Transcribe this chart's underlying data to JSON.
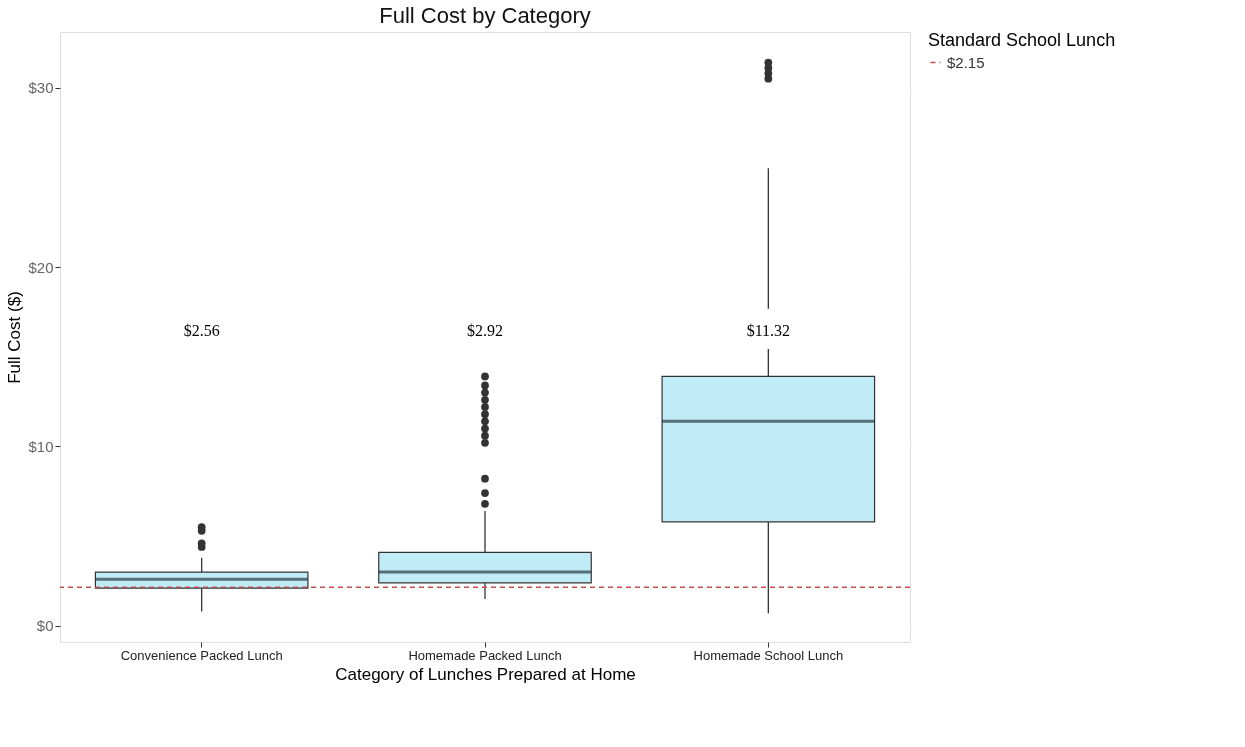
{
  "chart_data": {
    "type": "box",
    "title": "Full Cost by Category",
    "xlabel": "Category of Lunches Prepared at Home",
    "ylabel": "Full Cost ($)",
    "legend_title": "Standard School Lunch",
    "categories": [
      "Convenience Packed Lunch",
      "Homemade Packed Lunch",
      "Homemade School Lunch"
    ],
    "series": [
      {
        "color": "#c0ecf8",
        "boxes": [
          {
            "low": 0.8,
            "q1": 2.1,
            "median": 2.6,
            "q3": 3.0,
            "high": 3.8,
            "outliers": [
              4.4,
              4.6,
              5.3,
              5.5
            ]
          },
          {
            "low": 1.5,
            "q1": 2.4,
            "median": 3.0,
            "q3": 4.1,
            "high": 6.4,
            "outliers": [
              6.8,
              7.4,
              8.2,
              10.2,
              10.6,
              11.0,
              11.4,
              11.8,
              12.2,
              12.6,
              13.0,
              13.4,
              13.9
            ]
          },
          {
            "low": 0.7,
            "q1": 5.8,
            "median": 11.4,
            "q3": 13.9,
            "high": 25.5,
            "outliers": [
              30.5,
              30.8,
              31.1,
              31.4
            ]
          }
        ]
      }
    ],
    "ylim": [
      -0.9,
      33.1
    ],
    "yticks": [
      {
        "value": 0,
        "label": "$0"
      },
      {
        "value": 10,
        "label": "$10"
      },
      {
        "value": 20,
        "label": "$20"
      },
      {
        "value": 30,
        "label": "$30"
      }
    ],
    "ref_lines": [
      {
        "axis": "y",
        "value": 2.15,
        "label": "$2.15",
        "color": "#c0504d",
        "line_style": "dashed"
      }
    ],
    "annotations": [
      "$2.56",
      "$2.92",
      "$11.32"
    ],
    "grid": true,
    "legend": "right"
  }
}
